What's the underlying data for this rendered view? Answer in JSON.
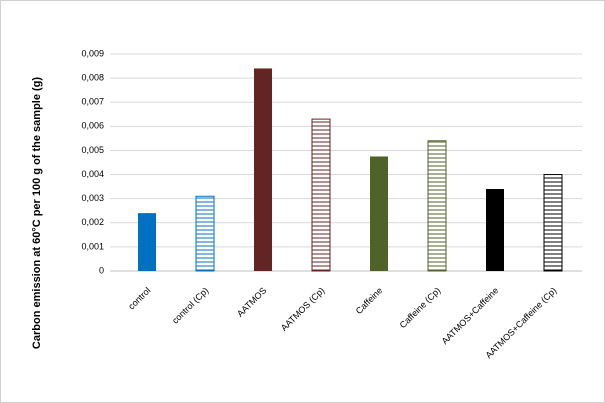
{
  "chart_data": {
    "type": "bar",
    "y_label": "Carbon emission at 60°C  per 100  g of the sample (g)",
    "categories": [
      "control",
      "control (Cp)",
      "AATMOS",
      "AATMOS (Cp)",
      "Caffeine",
      "Caffeine (Cp)",
      "AATMOS+Caffeine",
      "AATMOS+Caffeine (Cp)"
    ],
    "values": [
      0.0024,
      0.0031,
      0.0084,
      0.0063,
      0.00475,
      0.0054,
      0.0034,
      0.004
    ],
    "colors": [
      "#0070c0",
      "#0070c0",
      "#632523",
      "#632523",
      "#4f6228",
      "#4f6228",
      "#000000",
      "#000000"
    ],
    "fills": [
      "solid",
      "hatch",
      "solid",
      "hatch",
      "solid",
      "hatch",
      "solid",
      "hatch"
    ],
    "ylim": [
      0,
      0.009
    ],
    "yticks": [
      0,
      {
        "value": 0.001,
        "label": "0,001"
      },
      {
        "value": 0.002,
        "label": "0,002"
      },
      {
        "value": 0.003,
        "label": "0,003"
      },
      {
        "value": 0.004,
        "label": "0,004"
      },
      {
        "value": 0.005,
        "label": "0,005"
      },
      {
        "value": 0.006,
        "label": "0,006"
      },
      {
        "value": 0.007,
        "label": "0,007"
      },
      {
        "value": 0.008,
        "label": "0,008"
      },
      {
        "value": 0.009,
        "label": "0,009"
      }
    ],
    "grid": true
  }
}
